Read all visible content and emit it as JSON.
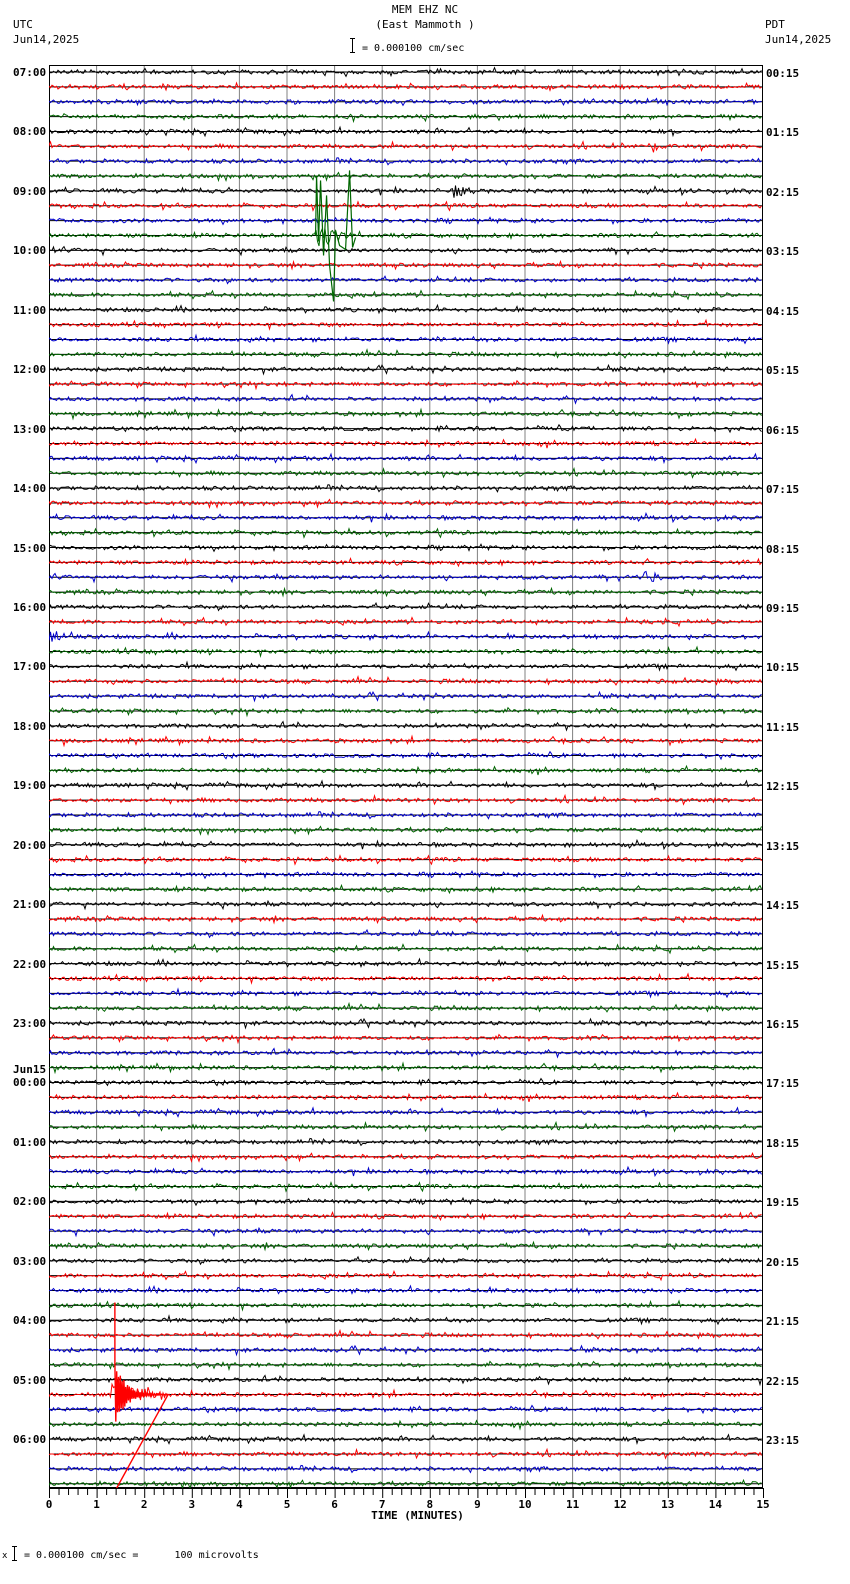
{
  "header": {
    "station": "MEM EHZ NC",
    "location": "(East Mammoth )",
    "left_tz": "UTC",
    "left_date": "Jun14,2025",
    "right_tz": "PDT",
    "right_date": "Jun14,2025",
    "scale_text": "= 0.000100 cm/sec"
  },
  "footer": {
    "scale_text": "= 0.000100 cm/sec =      100 microvolts",
    "prefix": "x"
  },
  "colors": {
    "trace_cycle": [
      "#000000",
      "#ff0000",
      "#0000cc",
      "#006600"
    ],
    "grid": "#808080"
  },
  "chart_data": {
    "type": "line",
    "title": "MEM EHZ NC (East Mammoth )",
    "subtitle": "Helicorder seismogram, 15-minute traces, 4 per hour",
    "xlabel": "TIME (MINUTES)",
    "ylabel": "",
    "xlim": [
      0,
      15
    ],
    "x_ticks": [
      "0",
      "1",
      "2",
      "3",
      "4",
      "5",
      "6",
      "7",
      "8",
      "9",
      "10",
      "11",
      "12",
      "13",
      "14",
      "15"
    ],
    "grid": true,
    "left_axis_labels": [
      "07:00",
      "08:00",
      "09:00",
      "10:00",
      "11:00",
      "12:00",
      "13:00",
      "14:00",
      "15:00",
      "16:00",
      "17:00",
      "18:00",
      "19:00",
      "20:00",
      "21:00",
      "22:00",
      "23:00",
      "00:00",
      "01:00",
      "02:00",
      "03:00",
      "04:00",
      "05:00",
      "06:00"
    ],
    "left_date_break": {
      "label": "Jun15",
      "before": "00:00"
    },
    "right_axis_labels": [
      "00:15",
      "01:15",
      "02:15",
      "03:15",
      "04:15",
      "05:15",
      "06:15",
      "07:15",
      "08:15",
      "09:15",
      "10:15",
      "11:15",
      "12:15",
      "13:15",
      "14:15",
      "15:15",
      "16:15",
      "17:15",
      "18:15",
      "19:15",
      "20:15",
      "21:15",
      "22:15",
      "23:15"
    ],
    "trace_count": 96,
    "scale": "0.000100 cm/sec = 100 microvolts",
    "events": [
      {
        "trace_hour_utc": "09:00",
        "trace_index": 11,
        "minute_start": 5.6,
        "minute_end": 6.4,
        "color": "green",
        "note": "large spiky glitch spanning several traces"
      },
      {
        "trace_hour_utc": "05:00",
        "trace_index": 89,
        "minute_start": 1.3,
        "minute_end": 2.5,
        "color": "red",
        "note": "large earthquake signal spanning many traces"
      },
      {
        "trace_hour_utc": "15:00",
        "trace_index": 34,
        "minute_start": 12.5,
        "minute_end": 13.0,
        "color": "blue",
        "note": "local event"
      },
      {
        "trace_hour_utc": "08:00",
        "trace_index": 5,
        "minute_start": 12.6,
        "minute_end": 13.0,
        "color": "red",
        "note": "local event"
      },
      {
        "trace_hour_utc": "09:00",
        "trace_index": 8,
        "minute_start": 8.5,
        "minute_end": 9.0,
        "color": "black",
        "note": "local event"
      },
      {
        "trace_hour_utc": "16:00",
        "trace_index": 38,
        "minute_start": 0.0,
        "minute_end": 1.0,
        "color": "blue",
        "note": "noise burst"
      }
    ]
  }
}
